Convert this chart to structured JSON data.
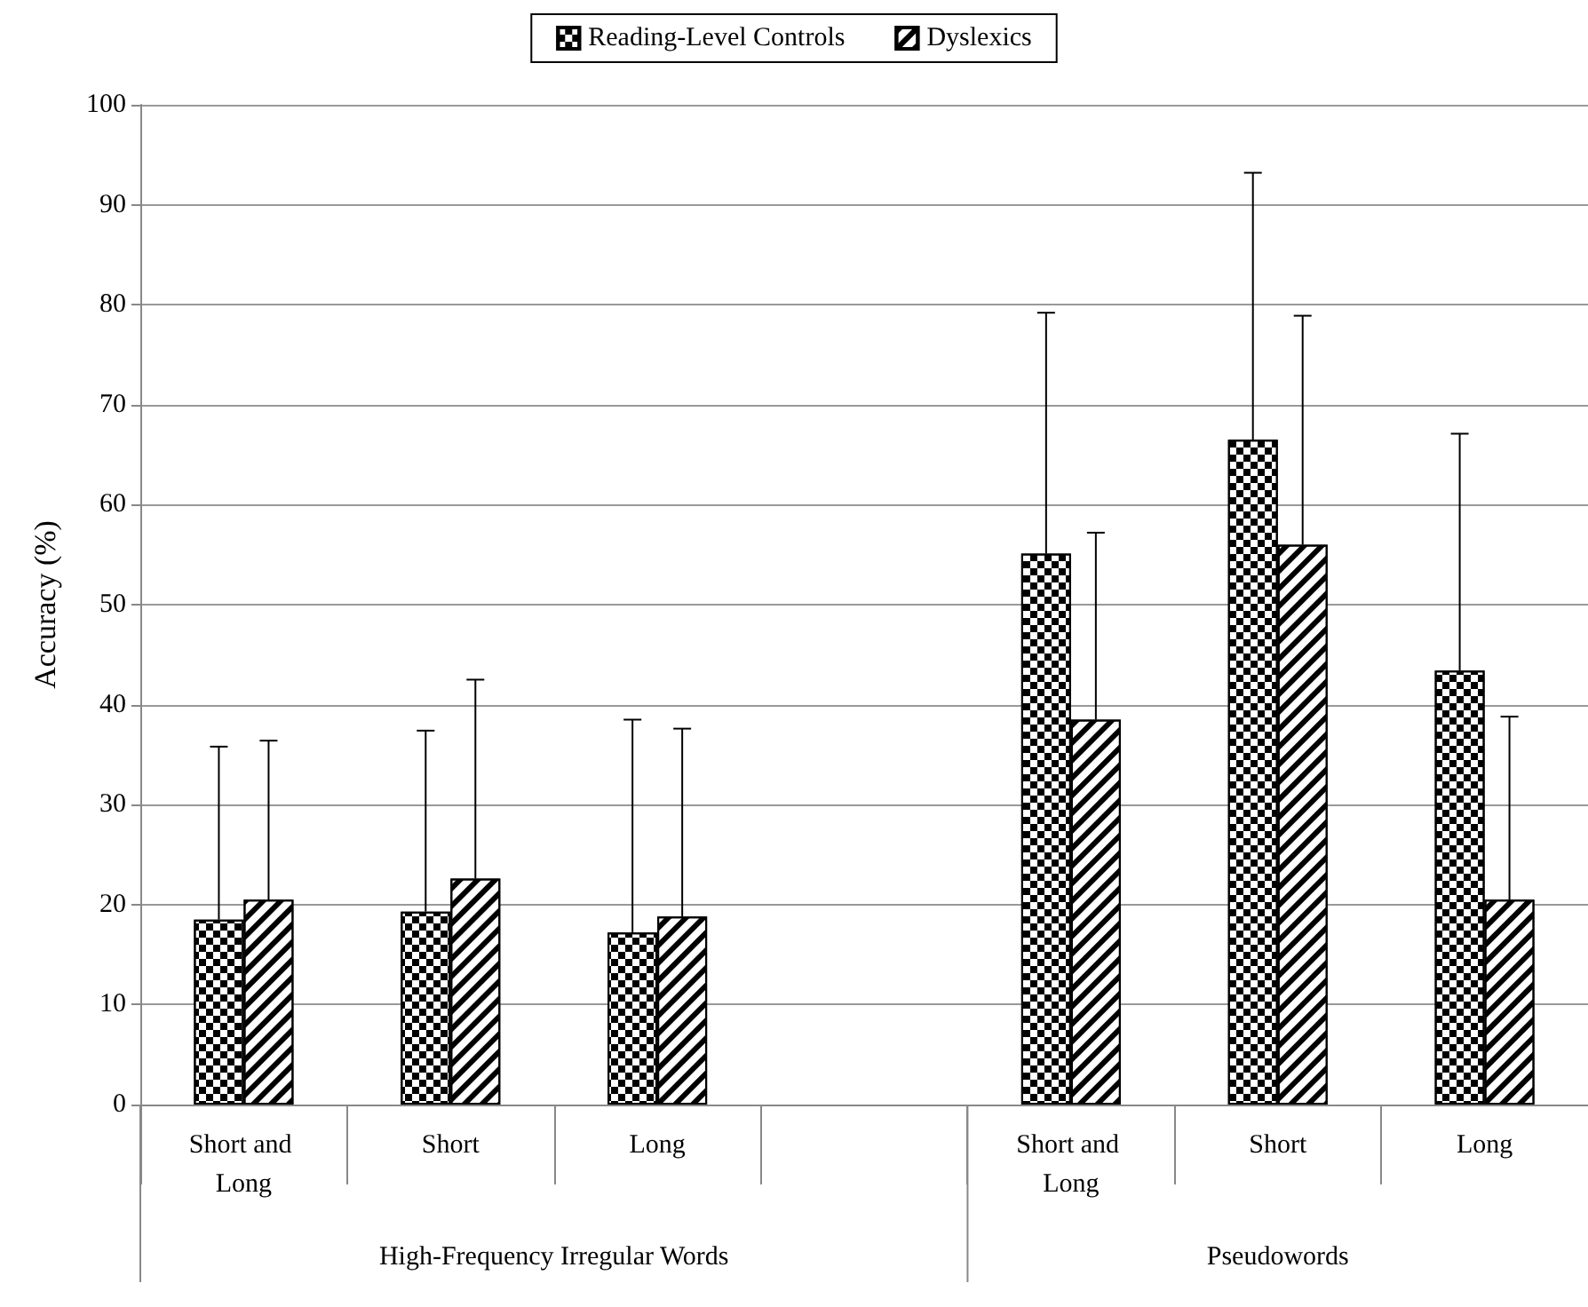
{
  "chart_data": {
    "type": "bar",
    "categories": [
      "Short and Long",
      "Short",
      "Long",
      null,
      "Short and Long",
      "Short",
      "Long"
    ],
    "series": [
      {
        "name": "Reading-Level Controls",
        "color": "#000000",
        "values": [
          18.5,
          19.3,
          17.2,
          null,
          55.1,
          66.5,
          43.4
        ],
        "errors": [
          [
            18.5,
            35.8
          ],
          [
            19.3,
            37.4
          ],
          [
            17.2,
            38.5
          ],
          null,
          [
            55.1,
            79.2
          ],
          [
            66.5,
            93.2
          ],
          [
            43.4,
            67.1
          ]
        ]
      },
      {
        "name": "Dyslexics",
        "color": "#000000",
        "values": [
          20.5,
          22.6,
          18.8,
          null,
          38.5,
          56.0,
          20.5
        ],
        "errors": [
          [
            20.5,
            36.4
          ],
          [
            22.6,
            42.5
          ],
          [
            18.8,
            37.6
          ],
          null,
          [
            38.5,
            57.2
          ],
          [
            56.0,
            78.9
          ],
          [
            20.5,
            38.8
          ]
        ]
      }
    ],
    "ylabel": "Accuracy (%)",
    "annotations": [
      "High-Frequency Irregular Words",
      "Pseudowords"
    ],
    "ylim": [
      0,
      100
    ],
    "yticks": [
      0,
      10,
      20,
      30,
      40,
      50,
      60,
      70,
      80,
      90,
      100
    ],
    "grid": "y",
    "legend": "top"
  }
}
